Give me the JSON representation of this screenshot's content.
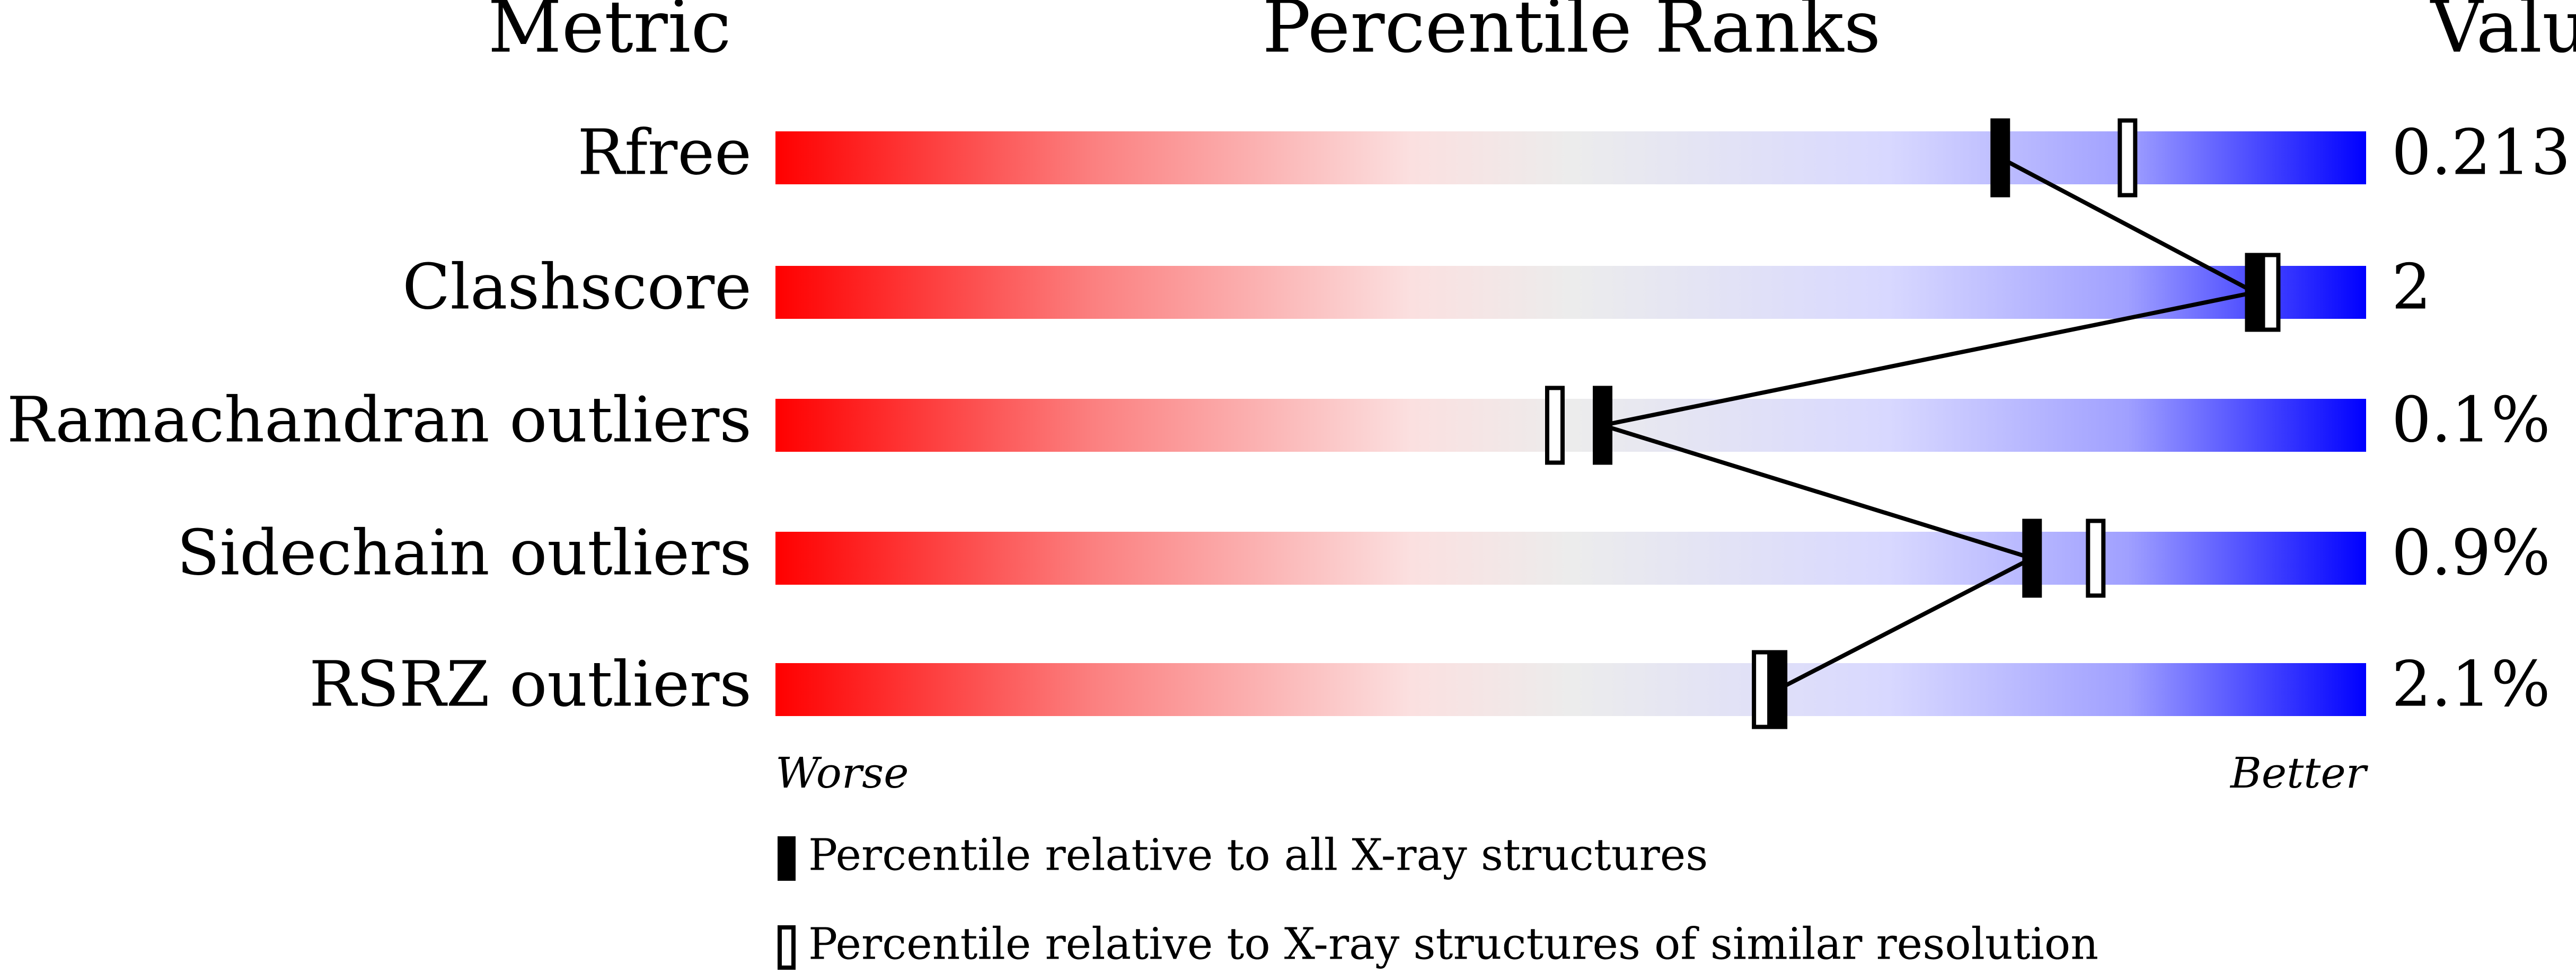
{
  "chart_data": {
    "type": "percentile",
    "headers": [
      "Metric",
      "Percentile Ranks",
      "Value"
    ],
    "categories": [
      "Rfree",
      "Clashscore",
      "Ramachandran outliers",
      "Sidechain outliers",
      "RSRZ outliers"
    ],
    "values": [
      "0.213",
      "2",
      "0.1%",
      "0.9%",
      "2.1%"
    ],
    "xlim": [
      0,
      100
    ],
    "axis_labels": [
      "Worse",
      "Better"
    ],
    "series": [
      {
        "name": "Percentile relative to all X-ray structures",
        "color": "#000000",
        "style": "filled",
        "values": [
          77,
          93,
          52,
          79,
          63
        ]
      },
      {
        "name": "Percentile relative to X-ray structures of similar resolution",
        "color": "#000000",
        "style": "open",
        "values": [
          85,
          94,
          49,
          83,
          62
        ]
      }
    ]
  }
}
